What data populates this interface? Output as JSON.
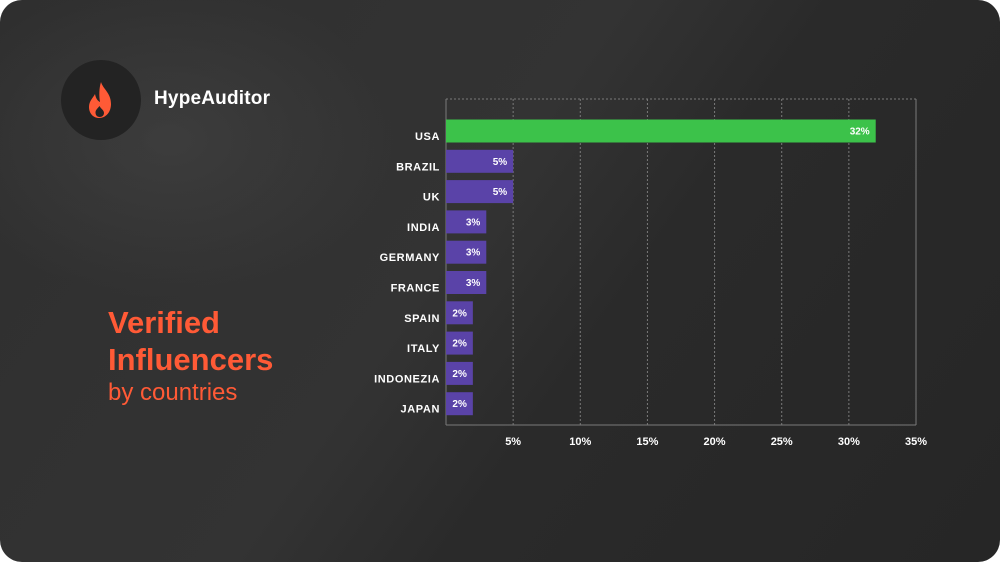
{
  "brand": {
    "name": "HypeAuditor",
    "logo_icon": "flame-icon",
    "logo_color": "#ff5a36"
  },
  "heading": {
    "line1": "Verified",
    "line2": "Influencers",
    "subtitle": "by countries",
    "color": "#ff5a36"
  },
  "chart_data": {
    "type": "bar",
    "orientation": "horizontal",
    "categories": [
      "USA",
      "BRAZIL",
      "UK",
      "INDIA",
      "GERMANY",
      "FRANCE",
      "SPAIN",
      "ITALY",
      "INDONEZIA",
      "JAPAN"
    ],
    "values": [
      32,
      5,
      5,
      3,
      3,
      3,
      2,
      2,
      2,
      2
    ],
    "value_labels": [
      "32%",
      "5%",
      "5%",
      "3%",
      "3%",
      "3%",
      "2%",
      "2%",
      "2%",
      "2%"
    ],
    "xlim": [
      0,
      35
    ],
    "xticks": [
      5,
      10,
      15,
      20,
      25,
      30,
      35
    ],
    "xtick_labels": [
      "5%",
      "10%",
      "15%",
      "20%",
      "25%",
      "30%",
      "35%"
    ],
    "grid": "vertical dashed",
    "colors": {
      "highlight": "#3cc24a",
      "default": "#5a43a8",
      "grid": "#7a7a7a"
    }
  }
}
